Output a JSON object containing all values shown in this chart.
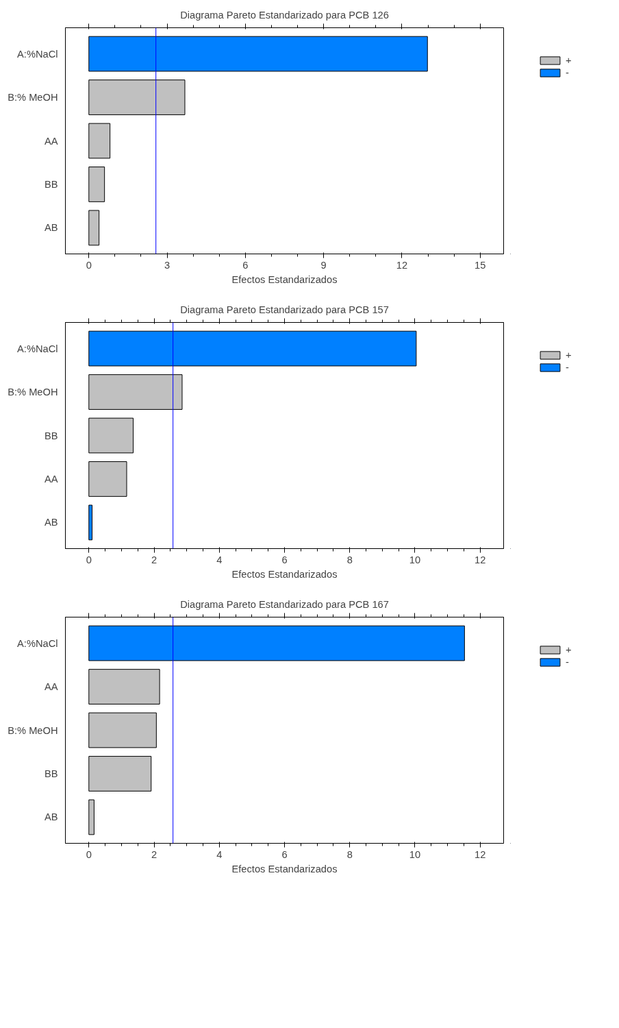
{
  "chart_data": [
    {
      "type": "bar",
      "orientation": "horizontal",
      "title": "Diagrama Pareto Estandarizado para PCB 126",
      "xlabel": "Efectos Estandarizados",
      "categories": [
        "A:%NaCl",
        "B:% MeOH",
        "AA",
        "BB",
        "AB"
      ],
      "series": [
        {
          "name": "+",
          "color": "#c0c0c0",
          "values": [
            null,
            3.68,
            0.81,
            0.6,
            0.39
          ]
        },
        {
          "name": "-",
          "color": "#0080ff",
          "values": [
            12.98,
            null,
            null,
            null,
            null
          ]
        }
      ],
      "xlim": [
        -0.9,
        15.9
      ],
      "xticks": [
        0,
        3,
        6,
        9,
        12,
        15
      ],
      "ref_lines": [
        {
          "axis": "x",
          "value": 2.57,
          "color": "#0000ff"
        }
      ],
      "grid": false,
      "legend": "top right"
    },
    {
      "type": "bar",
      "orientation": "horizontal",
      "title": "Diagrama Pareto Estandarizado para PCB 157",
      "xlabel": "Efectos Estandarizados",
      "categories": [
        "A:%NaCl",
        "B:% MeOH",
        "BB",
        "AA",
        "AB"
      ],
      "series": [
        {
          "name": "+",
          "color": "#c0c0c0",
          "values": [
            null,
            2.86,
            1.36,
            1.16,
            null
          ]
        },
        {
          "name": "-",
          "color": "#0080ff",
          "values": [
            10.04,
            null,
            null,
            null,
            0.1
          ]
        }
      ],
      "xlim": [
        -0.72,
        12.72
      ],
      "xticks": [
        0,
        2,
        4,
        6,
        8,
        10,
        12
      ],
      "ref_lines": [
        {
          "axis": "x",
          "value": 2.58,
          "color": "#0000ff"
        }
      ],
      "grid": false,
      "legend": "top right"
    },
    {
      "type": "bar",
      "orientation": "horizontal",
      "title": "Diagrama Pareto Estandarizado para PCB 167",
      "xlabel": "Efectos Estandarizados",
      "categories": [
        "A:%NaCl",
        "AA",
        "B:% MeOH",
        "BB",
        "AB"
      ],
      "series": [
        {
          "name": "+",
          "color": "#c0c0c0",
          "values": [
            null,
            2.17,
            2.07,
            1.91,
            0.16
          ]
        },
        {
          "name": "-",
          "color": "#0080ff",
          "values": [
            11.52,
            null,
            null,
            null,
            null
          ]
        }
      ],
      "xlim": [
        -0.72,
        12.72
      ],
      "xticks": [
        0,
        2,
        4,
        6,
        8,
        10,
        12
      ],
      "ref_lines": [
        {
          "axis": "x",
          "value": 2.58,
          "color": "#0000ff"
        }
      ],
      "grid": false,
      "legend": "top right"
    }
  ]
}
